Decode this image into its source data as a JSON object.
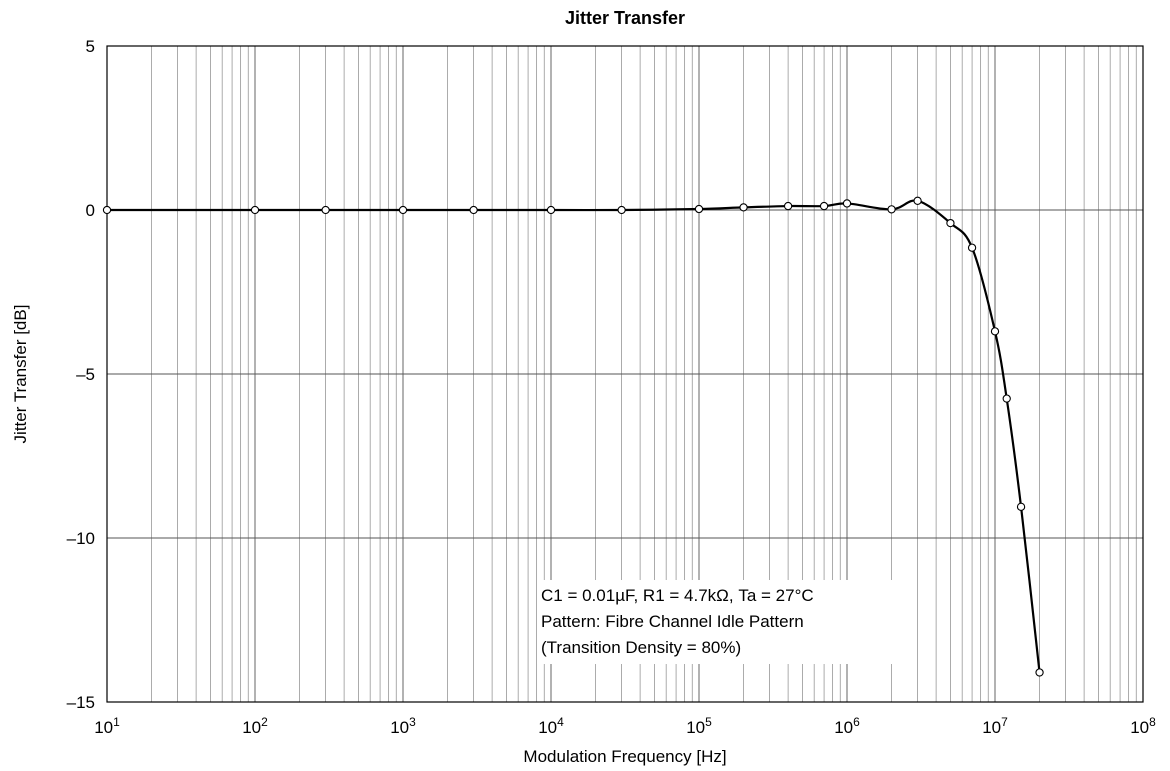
{
  "chart_data": {
    "type": "line",
    "title": "Jitter Transfer",
    "xlabel": "Modulation Frequency [Hz]",
    "ylabel": "Jitter Transfer [dB]",
    "x_scale": "log",
    "xlim": [
      10,
      100000000
    ],
    "ylim": [
      -15,
      5
    ],
    "grid": true,
    "x_ticks": [
      {
        "base": "10",
        "exp": "1"
      },
      {
        "base": "10",
        "exp": "2"
      },
      {
        "base": "10",
        "exp": "3"
      },
      {
        "base": "10",
        "exp": "4"
      },
      {
        "base": "10",
        "exp": "5"
      },
      {
        "base": "10",
        "exp": "6"
      },
      {
        "base": "10",
        "exp": "7"
      },
      {
        "base": "10",
        "exp": "8"
      }
    ],
    "y_ticks": [
      "5",
      "0",
      "–5",
      "–10",
      "–15"
    ],
    "series": [
      {
        "x": [
          10,
          100,
          300,
          1000,
          3000,
          10000,
          30000,
          100000,
          200000,
          400000,
          700000,
          1000000,
          2000000,
          3000000,
          5000000,
          7000000,
          10000000,
          12000000,
          15000000,
          20000000
        ],
        "y": [
          0,
          0,
          0,
          0,
          0,
          0,
          0,
          0.03,
          0.08,
          0.12,
          0.12,
          0.2,
          0.02,
          0.28,
          -0.4,
          -1.15,
          -3.7,
          -5.75,
          -9.05,
          -14.1
        ],
        "marker": "open-circle",
        "color": "#000000"
      }
    ],
    "annotation": [
      "C1 = 0.01µF, R1 = 4.7kΩ, Ta = 27°C",
      "Pattern: Fibre Channel Idle Pattern",
      "(Transition Density = 80%)"
    ]
  }
}
